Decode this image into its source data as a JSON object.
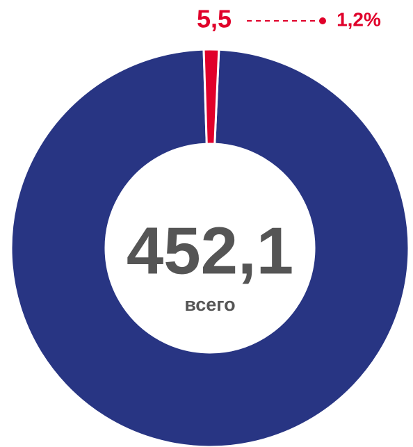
{
  "chart_data": {
    "type": "donut",
    "values": [
      5.5,
      446.6
    ],
    "value_labels": [
      "5,5",
      null
    ],
    "percent_labels": [
      "1,2%",
      null
    ],
    "colors": [
      "#e0002a",
      "#283583"
    ],
    "center_label": "452,1",
    "center_sublabel": "всего"
  }
}
